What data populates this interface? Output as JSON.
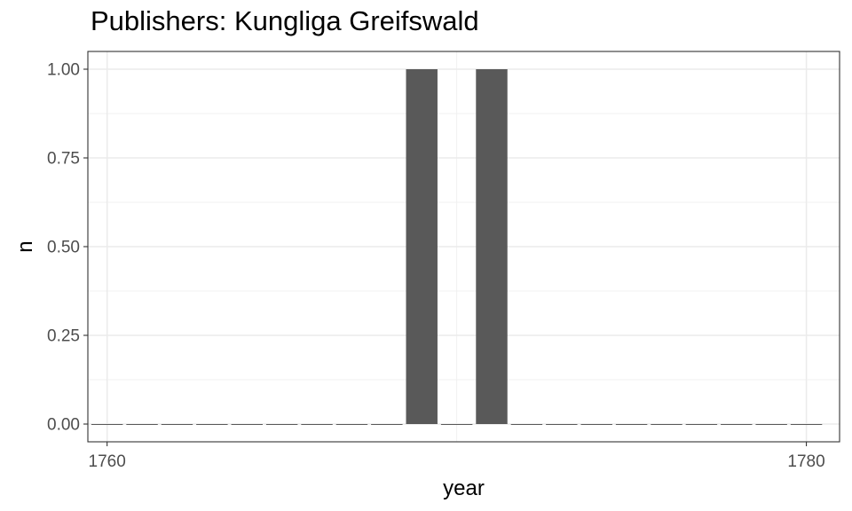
{
  "chart_data": {
    "type": "bar",
    "title": "Publishers: Kungliga Greifswald",
    "xlabel": "year",
    "ylabel": "n",
    "xlim": [
      1759.45,
      1780.95
    ],
    "ylim": [
      -0.05,
      1.05
    ],
    "x_ticks": [
      1760,
      1780
    ],
    "y_ticks": [
      0,
      0.25,
      0.5,
      0.75,
      1
    ],
    "y_tick_labels": [
      "0.00",
      "0.25",
      "0.50",
      "0.75",
      "1.00"
    ],
    "bar_color": "#595959",
    "grid": true,
    "x": [
      1760,
      1761,
      1762,
      1763,
      1764,
      1765,
      1766,
      1767,
      1768,
      1769,
      1770,
      1771,
      1772,
      1773,
      1774,
      1775,
      1776,
      1777,
      1778,
      1779,
      1780
    ],
    "values": [
      0,
      0,
      0,
      0,
      0,
      0,
      0,
      0,
      0,
      1,
      0,
      1,
      0,
      0,
      0,
      0,
      0,
      0,
      0,
      0,
      0
    ]
  }
}
